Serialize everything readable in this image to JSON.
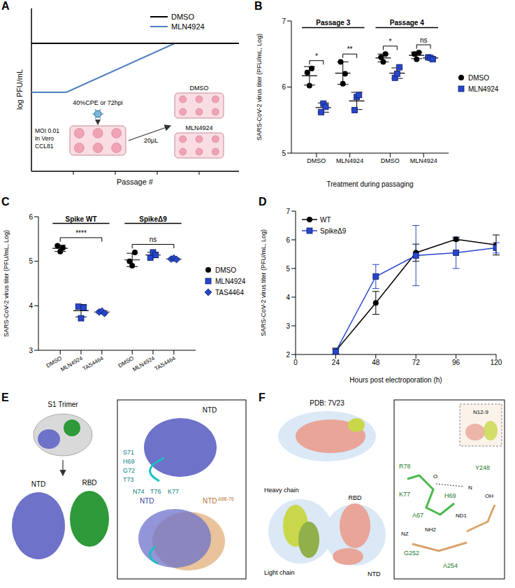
{
  "chart_data": [
    {
      "panel": "B",
      "type": "scatter",
      "ylabel": "SARS-CoV-2 virus titer (PFU/mL, Log)",
      "xlabel": "Treatment during passaging",
      "ylim": [
        5,
        7
      ],
      "yticks": [
        5,
        6,
        7
      ],
      "legend": "right",
      "groups": [
        {
          "label": "Passage 3",
          "categories": [
            "DMSO",
            "MLN4924"
          ],
          "significance": [
            "*",
            "**"
          ]
        },
        {
          "label": "Passage 4",
          "categories": [
            "DMSO",
            "MLN4924"
          ],
          "significance": [
            "*",
            "ns"
          ]
        }
      ],
      "series": [
        {
          "name": "DMSO",
          "color": "#000000",
          "marker": "circle",
          "values": [
            [
              6.22,
              6.02,
              6.28
            ],
            [
              6.38,
              6.05,
              6.2
            ],
            [
              6.45,
              6.38,
              6.5
            ],
            [
              6.5,
              6.42,
              6.52
            ]
          ],
          "means": [
            6.17,
            6.21,
            6.44,
            6.48
          ],
          "sd": [
            0.14,
            0.17,
            0.06,
            0.05
          ]
        },
        {
          "name": "MLN4924",
          "color": "#2747c9",
          "marker": "square",
          "values": [
            [
              5.62,
              5.75,
              5.7
            ],
            [
              5.65,
              5.85,
              5.88
            ],
            [
              6.14,
              6.2,
              6.3
            ],
            [
              6.45,
              6.44,
              6.42
            ]
          ],
          "means": [
            5.69,
            5.79,
            6.21,
            6.44
          ],
          "sd": [
            0.07,
            0.13,
            0.08,
            0.02
          ]
        }
      ]
    },
    {
      "panel": "C",
      "type": "scatter",
      "ylabel": "SARS-CoV-2 virus titer (PFU/mL, Log)",
      "ylim": [
        3,
        6
      ],
      "yticks": [
        3,
        4,
        5,
        6
      ],
      "legend": "right",
      "groups": [
        {
          "label": "Spike WT",
          "categories": [
            "DMSO",
            "MLN4924",
            "TAS4464"
          ],
          "significance": "****"
        },
        {
          "label": "SpikeΔ9",
          "categories": [
            "DMSO",
            "MLN4924",
            "TAS4464"
          ],
          "significance": "ns"
        }
      ],
      "series": [
        {
          "name": "DMSO",
          "color": "#000000",
          "marker": "circle",
          "values": [
            [
              5.35,
              5.22,
              5.3
            ],
            [
              5.0,
              4.9,
              5.2
            ]
          ],
          "means": [
            5.29,
            5.03
          ],
          "sd": [
            0.07,
            0.15
          ]
        },
        {
          "name": "MLN4924",
          "color": "#2747c9",
          "marker": "square",
          "values": [
            [
              3.98,
              3.72,
              3.96
            ],
            [
              5.08,
              5.2,
              5.14
            ]
          ],
          "means": [
            3.89,
            5.14
          ],
          "sd": [
            0.14,
            0.06
          ]
        },
        {
          "name": "TAS4464",
          "color": "#2747c9",
          "marker": "diamond",
          "values": [
            [
              3.86,
              3.88,
              3.83
            ],
            [
              5.05,
              5.07,
              5.04
            ]
          ],
          "means": [
            3.86,
            5.05
          ],
          "sd": [
            0.03,
            0.02
          ]
        }
      ]
    },
    {
      "panel": "D",
      "type": "line",
      "xlabel": "Hours post electroporation (h)",
      "ylabel": "SARS-CoV-2 virus titer (PFU/mL, Log)",
      "x": [
        24,
        48,
        72,
        96,
        120
      ],
      "xlim": [
        0,
        120
      ],
      "xticks": [
        0,
        24,
        48,
        72,
        96,
        120
      ],
      "ylim": [
        2,
        7
      ],
      "yticks": [
        2,
        3,
        4,
        5,
        6,
        7
      ],
      "legend": "upper left",
      "series": [
        {
          "name": "WT",
          "color": "#000000",
          "marker": "circle",
          "values": [
            2.12,
            3.8,
            5.55,
            6.02,
            5.82
          ],
          "sd": [
            0.1,
            0.4,
            0.3,
            0.05,
            0.35
          ]
        },
        {
          "name": "SpikeΔ9",
          "color": "#2747c9",
          "marker": "square",
          "values": [
            2.1,
            4.72,
            5.45,
            5.55,
            5.72
          ],
          "sd": [
            0.08,
            0.42,
            1.05,
            0.55,
            0.18
          ]
        }
      ]
    }
  ],
  "diagrams": {
    "A": {
      "panel": "A",
      "ylabel": "log PFU/mL",
      "xlabel": "Passage #",
      "legend": [
        {
          "name": "DMSO",
          "color": "#000000"
        },
        {
          "name": "MLN4924",
          "color": "#4f7fc0"
        }
      ],
      "inoculum": [
        "MOI 0.01",
        "In Vero",
        "CCL81"
      ],
      "harvest": "40%CPE or 72hpi",
      "transfer": "20μL",
      "plates": [
        "DMSO",
        "MLN4924"
      ]
    },
    "E": {
      "panel": "E",
      "overview": "S1 Trimer",
      "ntd": "NTD",
      "rbd": "RBD",
      "zoom_ntd": "NTD",
      "overlay_ntd": "NTD",
      "overlay_deleted": "NTD",
      "deletion": "Δ68-76",
      "residues": [
        "S71",
        "H69",
        "G72",
        "T73",
        "N74",
        "T76",
        "K77"
      ]
    },
    "F": {
      "panel": "F",
      "pdb": "PDB: 7V23",
      "heavy": "Heavy chain",
      "light": "Light chain",
      "rbd": "RBD",
      "ntd": "NTD",
      "antibody": "N12-9",
      "residues": [
        "R78",
        "K77",
        "A67",
        "H69",
        "Y248",
        "G252",
        "A254"
      ],
      "atoms": [
        "NZ",
        "NH2",
        "ND1",
        "N",
        "O",
        "OH"
      ]
    }
  }
}
